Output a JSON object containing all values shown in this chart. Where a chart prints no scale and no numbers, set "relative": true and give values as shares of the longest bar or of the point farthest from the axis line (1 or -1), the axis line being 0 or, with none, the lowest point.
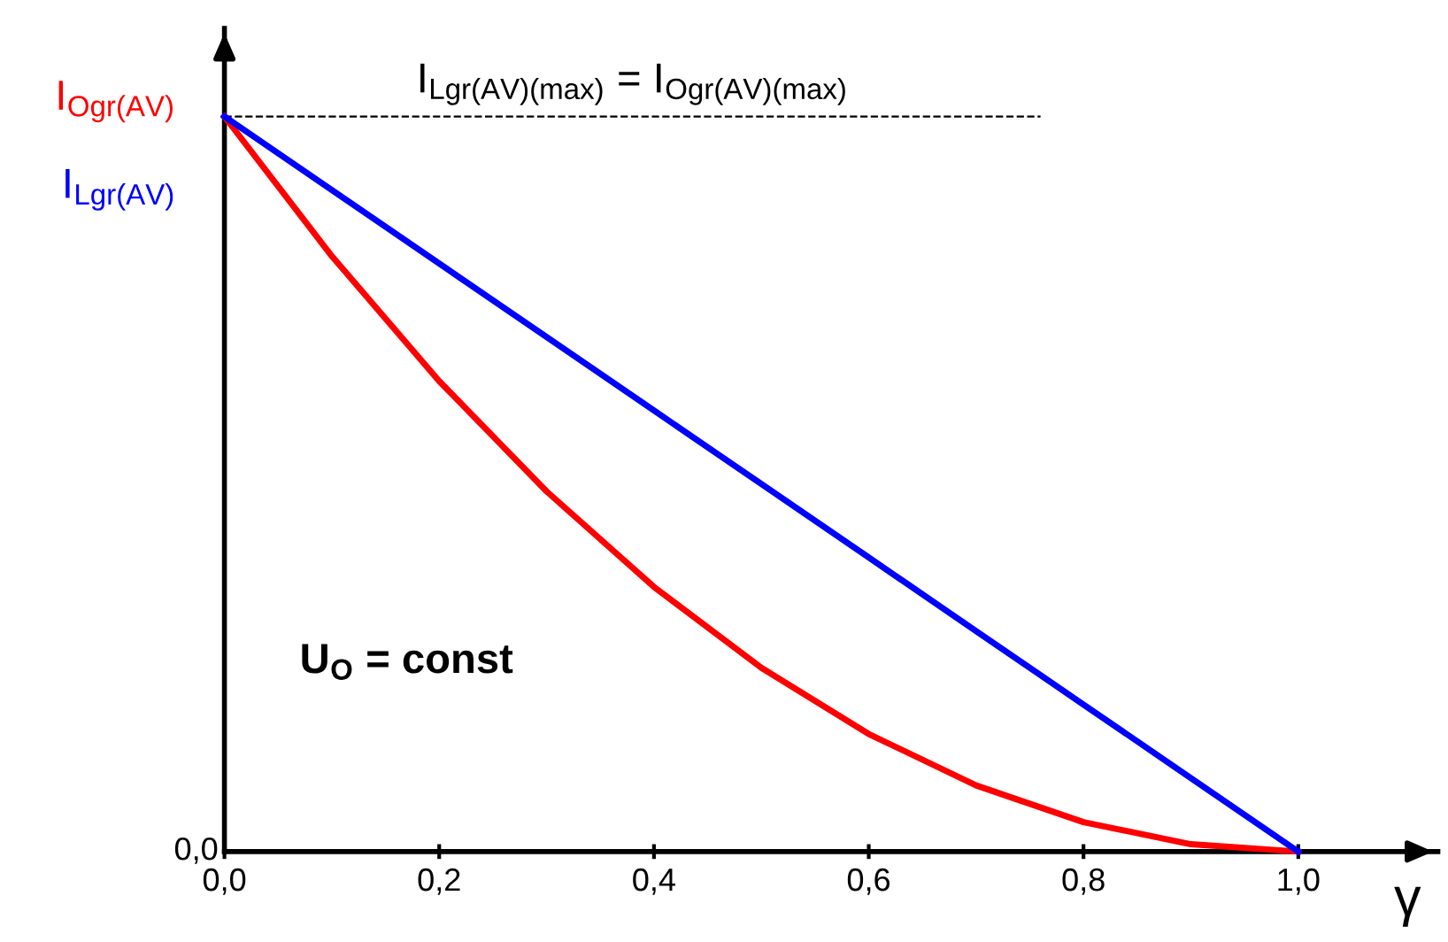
{
  "chart_data": {
    "type": "line",
    "relative": true,
    "xlabel": "γ",
    "x": [
      0,
      0.1,
      0.2,
      0.3,
      0.4,
      0.5,
      0.6,
      0.7,
      0.8,
      0.9,
      1.0
    ],
    "xlim": [
      0,
      1.13
    ],
    "xticks": [
      {
        "value": 0,
        "label": "0,0"
      },
      {
        "value": 0.2,
        "label": "0,2"
      },
      {
        "value": 0.4,
        "label": "0,4"
      },
      {
        "value": 0.6,
        "label": "0,6"
      },
      {
        "value": 0.8,
        "label": "0,8"
      },
      {
        "value": 1.0,
        "label": "1,0"
      }
    ],
    "series": [
      {
        "name": "I$_{Ogr(AV)}$",
        "color": "#ff0000",
        "values": [
          1,
          0.81,
          0.64,
          0.49,
          0.36,
          0.25,
          0.16,
          0.09,
          0.04,
          0.01,
          0
        ]
      },
      {
        "name": "I$_{Lgr(AV)}$",
        "color": "#0000ff",
        "values": [
          1,
          0.9,
          0.8,
          0.7,
          0.6,
          0.5,
          0.4,
          0.3,
          0.2,
          0.1,
          0
        ]
      }
    ],
    "ref_lines": [
      {
        "axis": "y",
        "value": 1,
        "label": "I$_{Lgr(AV)(max)}$ = I$_{Ogr(AV)(max)}$",
        "color": "#000000",
        "line_style": "dashed"
      }
    ],
    "annotations": [
      "0,0",
      "U$_{O}$ = const"
    ],
    "grid": false,
    "legend": false,
    "marker": "none",
    "line_style": "solid"
  }
}
